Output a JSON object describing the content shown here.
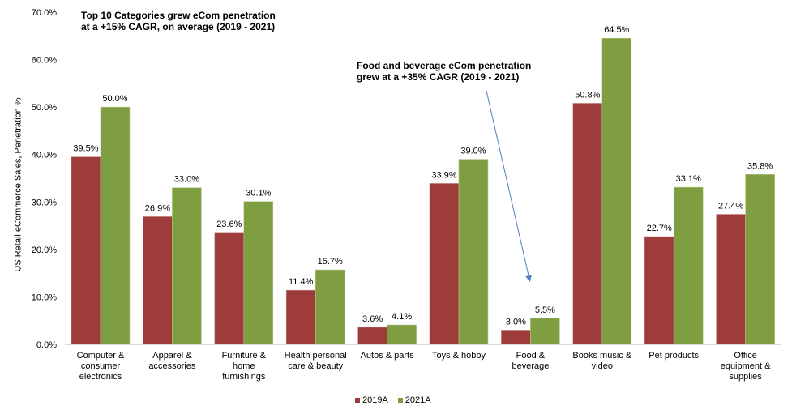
{
  "chart_data": {
    "type": "bar",
    "title": "",
    "xlabel": "",
    "ylabel": "US Retail eCommerce Sales, Penetration %",
    "ylim": [
      0,
      70
    ],
    "yticks": [
      0,
      10,
      20,
      30,
      40,
      50,
      60,
      70
    ],
    "ytick_labels": [
      "0.0%",
      "10.0%",
      "20.0%",
      "30.0%",
      "40.0%",
      "50.0%",
      "60.0%",
      "70.0%"
    ],
    "grid": false,
    "legend_position": "bottom-center",
    "categories": [
      "Computer &\nconsumer\nelectronics",
      "Apparel &\naccessories",
      "Furniture &\nhome\nfurnishings",
      "Health personal\ncare & beauty",
      "Autos & parts",
      "Toys & hobby",
      "Food &\nbeverage",
      "Books music &\nvideo",
      "Pet products",
      "Office\nequipment &\nsupplies"
    ],
    "series": [
      {
        "name": "2019A",
        "color": "#9E3B3B",
        "values": [
          39.5,
          26.9,
          23.6,
          11.4,
          3.6,
          33.9,
          3.0,
          50.8,
          22.7,
          27.4
        ],
        "labels": [
          "39.5%",
          "26.9%",
          "23.6%",
          "11.4%",
          "3.6%",
          "33.9%",
          "3.0%",
          "50.8%",
          "22.7%",
          "27.4%"
        ]
      },
      {
        "name": "2021A",
        "color": "#7F9D41",
        "values": [
          50.0,
          33.0,
          30.1,
          15.7,
          4.1,
          39.0,
          5.5,
          64.5,
          33.1,
          35.8
        ],
        "labels": [
          "50.0%",
          "33.0%",
          "30.1%",
          "15.7%",
          "4.1%",
          "39.0%",
          "5.5%",
          "64.5%",
          "33.1%",
          "35.8%"
        ]
      }
    ],
    "annotations": [
      {
        "text": "Top 10 Categories grew eCom penetration\nat a +15% CAGR, on average (2019 - 2021)"
      },
      {
        "text": "Food and beverage eCom penetration\ngrew at a +35% CAGR (2019 - 2021)",
        "arrow_color": "#4F81BD",
        "arrow_target_category": "Food &\nbeverage"
      }
    ]
  }
}
